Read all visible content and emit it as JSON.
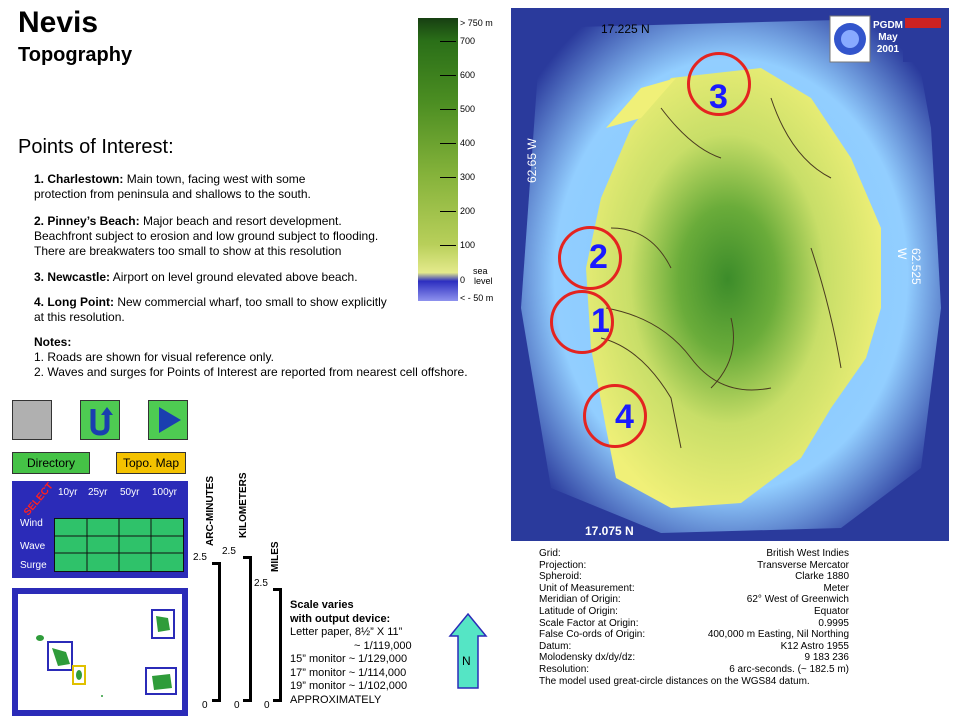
{
  "header": {
    "title": "Nevis",
    "subtitle": "Topography"
  },
  "points_of_interest": {
    "heading": "Points of Interest:",
    "items": [
      {
        "label": "1. Charlestown:",
        "text1": " Main town, facing west with some",
        "text2": "protection from peninsula and shallows to the south."
      },
      {
        "label": "2. Pinney’s Beach:",
        "text1": " Major beach and resort development.",
        "text2": "Beachfront subject to erosion and low ground subject to flooding.",
        "text3": "There are breakwaters too small to show at this resolution"
      },
      {
        "label": "3. Newcastle:",
        "text1": " Airport on level ground elevated above beach."
      },
      {
        "label": "4. Long Point:",
        "text1": " New commercial wharf, too small to show explicitly",
        "text2": "at this resolution."
      }
    ],
    "notes_heading": "Notes:",
    "notes": [
      "1. Roads are shown for visual reference only.",
      "2. Waves and surges for Points of Interest are reported from nearest cell offshore."
    ]
  },
  "legend": {
    "top": "> 750 m",
    "ticks": [
      "700",
      "600",
      "500",
      "400",
      "300",
      "200",
      "100"
    ],
    "zero": "0",
    "sea": "sea",
    "level": "level",
    "bottom": "< - 50 m"
  },
  "map": {
    "lat_top": "17.225 N",
    "lat_bottom": "17.075 N",
    "lon_left": "62.65 W",
    "lon_right": "62.525 W",
    "points": [
      "1",
      "2",
      "3",
      "4"
    ],
    "badge": {
      "line1": "PGDM",
      "line2": "May",
      "line3": "2001"
    }
  },
  "buttons": {
    "directory": "Directory",
    "topo_map": "Topo. Map"
  },
  "period_table": {
    "select": "SELECT",
    "periods": [
      "10yr",
      "25yr",
      "50yr",
      "100yr"
    ],
    "rows": [
      "Wind",
      "Wave",
      "Surge"
    ]
  },
  "scales": {
    "arc_minutes": "ARC-MINUTES",
    "kilometers": "KILOMETERS",
    "miles": "MILES",
    "arc_value": "2.5",
    "km_value": "2.5",
    "mi_value": "2.5",
    "zero": "0"
  },
  "scale_note": {
    "line1": "Scale varies",
    "line2": "with output device:",
    "line3": "Letter paper, 8½” X 11”",
    "line4": "~  1/119,000",
    "line5": "15” monitor ~  1/129,000",
    "line6": "17” monitor ~  1/114,000",
    "line7": "19” monitor ~  1/102,000",
    "line8": "APPROXIMATELY"
  },
  "north_label": "N",
  "grid_info": [
    {
      "k": "Grid:",
      "v": "British West Indies"
    },
    {
      "k": "Projection:",
      "v": "Transverse Mercator"
    },
    {
      "k": "Spheroid:",
      "v": "Clarke 1880"
    },
    {
      "k": "Unit of Measurement:",
      "v": "Meter"
    },
    {
      "k": "Meridian of Origin:",
      "v": "62° West of Greenwich"
    },
    {
      "k": "Latitude of Origin:",
      "v": "Equator"
    },
    {
      "k": "Scale Factor at Origin:",
      "v": "0.9995"
    },
    {
      "k": "False Co-ords of Origin:",
      "v": "400,000 m Easting, Nil Northing"
    },
    {
      "k": "Datum:",
      "v": "K12 Astro 1955"
    },
    {
      "k": "Molodensky dx/dy/dz:",
      "v": "9 183 236"
    },
    {
      "k": "Resolution:",
      "v": "6 arc-seconds. (~ 182.5 m)"
    }
  ],
  "grid_footer": "The model used great-circle distances on the WGS84 datum.",
  "colors": {
    "sea_deep": "#2a3a9c",
    "sea_shallow": "#8fc8ff",
    "land_low": "#f0f078",
    "land_high": "#3c8c2a",
    "circle": "#e42420",
    "point_number": "#1a1aff",
    "panel_blue": "#2b2bb8",
    "button_green": "#45c246",
    "button_yellow": "#f4c200",
    "north_arrow": "#55e5c5"
  },
  "icons": [
    "back-square-icon",
    "return-arrow-icon",
    "play-arrow-icon",
    "north-arrow-icon",
    "oas-logo-icon",
    "usaid-logo-icon"
  ]
}
